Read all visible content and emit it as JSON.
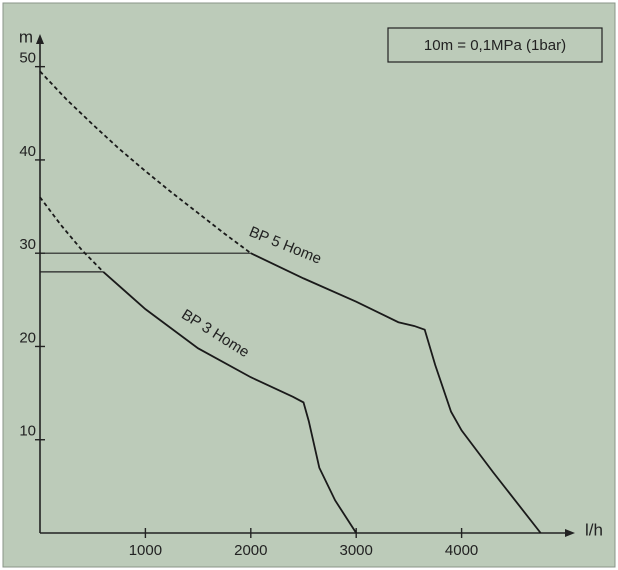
{
  "chart_data": {
    "type": "line",
    "y_label": "m",
    "x_label": "l/h",
    "annotation": "10m = 0,1MPa (1bar)",
    "xlim": [
      0,
      5000
    ],
    "xticks": [
      1000,
      2000,
      3000,
      4000
    ],
    "ylim": [
      0,
      52
    ],
    "yticks": [
      10,
      20,
      30,
      40,
      50
    ],
    "color": "#1a1a1a",
    "series": [
      {
        "name": "BP 5 Home",
        "segments": [
          {
            "style": "dashed",
            "x": [
              0,
              250,
              500,
              750,
              1000,
              1250,
              1500,
              1750,
              2000
            ],
            "values": [
              49.5,
              46.5,
              43.8,
              41.2,
              38.8,
              36.5,
              34.3,
              32.1,
              30
            ]
          },
          {
            "style": "solid",
            "x": [
              2000,
              2500,
              3000,
              3400,
              3550,
              3650,
              3750,
              3900,
              4000,
              4300,
              4750
            ],
            "values": [
              30,
              27.3,
              24.8,
              22.6,
              22.2,
              21.8,
              18,
              13,
              11,
              6.5,
              0
            ]
          }
        ]
      },
      {
        "name": "BP 3 Home",
        "segments": [
          {
            "style": "dashed",
            "x": [
              0,
              200,
              400,
              600
            ],
            "values": [
              36,
              33,
              30.3,
              28
            ]
          },
          {
            "style": "solid",
            "x": [
              600,
              1000,
              1500,
              2000,
              2400,
              2500,
              2550,
              2650,
              2800,
              3000
            ],
            "values": [
              28,
              24,
              19.8,
              16.7,
              14.6,
              14,
              12,
              7,
              3.5,
              0
            ]
          }
        ]
      }
    ],
    "reference_lines": [
      {
        "y": 30,
        "x_end": 2000
      },
      {
        "y": 28,
        "x_end": 600
      }
    ]
  }
}
